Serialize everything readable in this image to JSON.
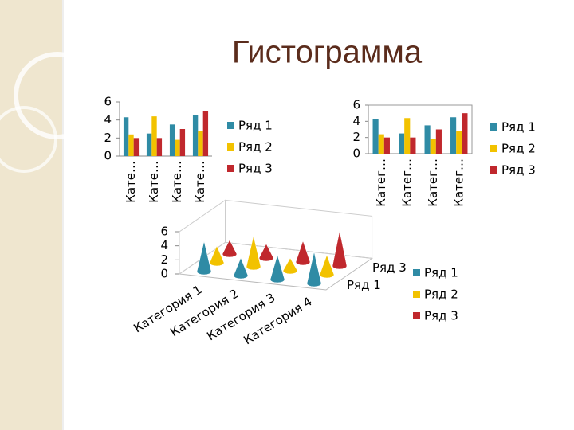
{
  "title": "Гистограмма",
  "chart_data": [
    {
      "type": "bar",
      "categories": [
        "Кате…",
        "Кате…",
        "Кате…",
        "Кате…"
      ],
      "series": [
        {
          "name": "Ряд 1",
          "color": "#2f8ba5",
          "values": [
            4.3,
            2.5,
            3.5,
            4.5
          ]
        },
        {
          "name": "Ряд 2",
          "color": "#f2c200",
          "values": [
            2.4,
            4.4,
            1.8,
            2.8
          ]
        },
        {
          "name": "Ряд 3",
          "color": "#c0282d",
          "values": [
            2,
            2,
            3,
            5
          ]
        }
      ],
      "ylim": [
        0,
        6
      ],
      "yticks": [
        0,
        2,
        4,
        6
      ],
      "legend": "right"
    },
    {
      "type": "bar",
      "categories": [
        "Катег…",
        "Катег…",
        "Катег…",
        "Катег…"
      ],
      "series": [
        {
          "name": "Ряд 1",
          "color": "#2f8ba5",
          "values": [
            4.3,
            2.5,
            3.5,
            4.5
          ]
        },
        {
          "name": "Ряд 2",
          "color": "#f2c200",
          "values": [
            2.4,
            4.4,
            1.8,
            2.8
          ]
        },
        {
          "name": "Ряд 3",
          "color": "#c0282d",
          "values": [
            2,
            2,
            3,
            5
          ]
        }
      ],
      "ylim": [
        0,
        6
      ],
      "yticks": [
        0,
        2,
        4,
        6
      ],
      "legend": "right"
    },
    {
      "type": "cone3d",
      "categories": [
        "Категория 1",
        "Категория 2",
        "Категория 3",
        "Категория 4"
      ],
      "series": [
        {
          "name": "Ряд 1",
          "color": "#2f8ba5",
          "values": [
            4.3,
            2.5,
            3.5,
            4.5
          ]
        },
        {
          "name": "Ряд 2",
          "color": "#f2c200",
          "values": [
            2.4,
            4.4,
            1.8,
            2.8
          ]
        },
        {
          "name": "Ряд 3",
          "color": "#c0282d",
          "values": [
            2,
            2,
            3,
            5
          ]
        }
      ],
      "ylim": [
        0,
        6
      ],
      "yticks": [
        0,
        2,
        4,
        6
      ],
      "legend": "right"
    }
  ]
}
